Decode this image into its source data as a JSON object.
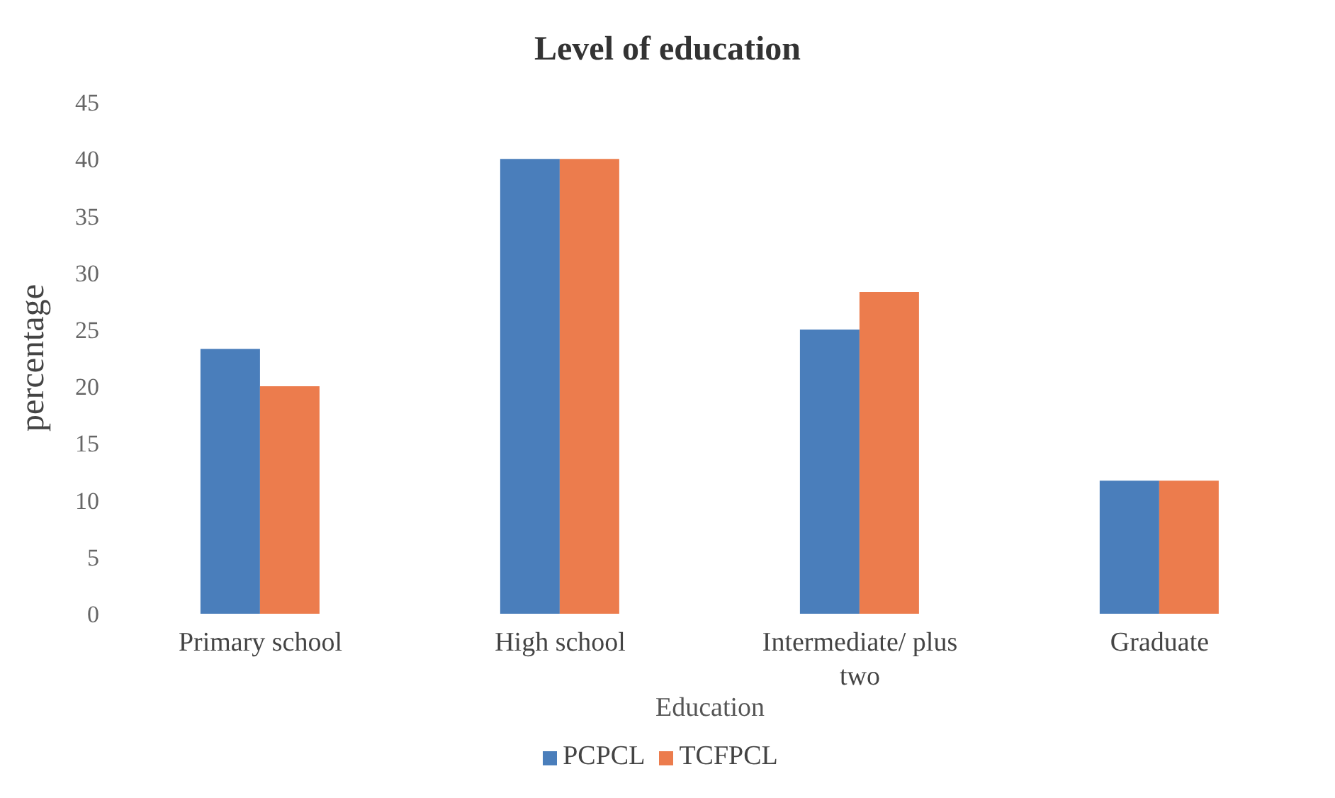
{
  "chart_data": {
    "type": "bar",
    "title": "Level of education",
    "xlabel": "Education",
    "ylabel": "percentage",
    "categories": [
      "Primary school",
      "High school",
      "Intermediate/ plus two",
      "Graduate"
    ],
    "series": [
      {
        "name": "PCPCL",
        "color": "#4a7ebb",
        "values": [
          23.3,
          40,
          25,
          11.7
        ]
      },
      {
        "name": "TCFPCL",
        "color": "#ec7c4d",
        "values": [
          20,
          40,
          28.3,
          11.7
        ]
      }
    ],
    "ylim": [
      0,
      45
    ],
    "yticks": [
      0,
      5,
      10,
      15,
      20,
      25,
      30,
      35,
      40,
      45
    ],
    "grid": false,
    "legend": "bottom"
  }
}
